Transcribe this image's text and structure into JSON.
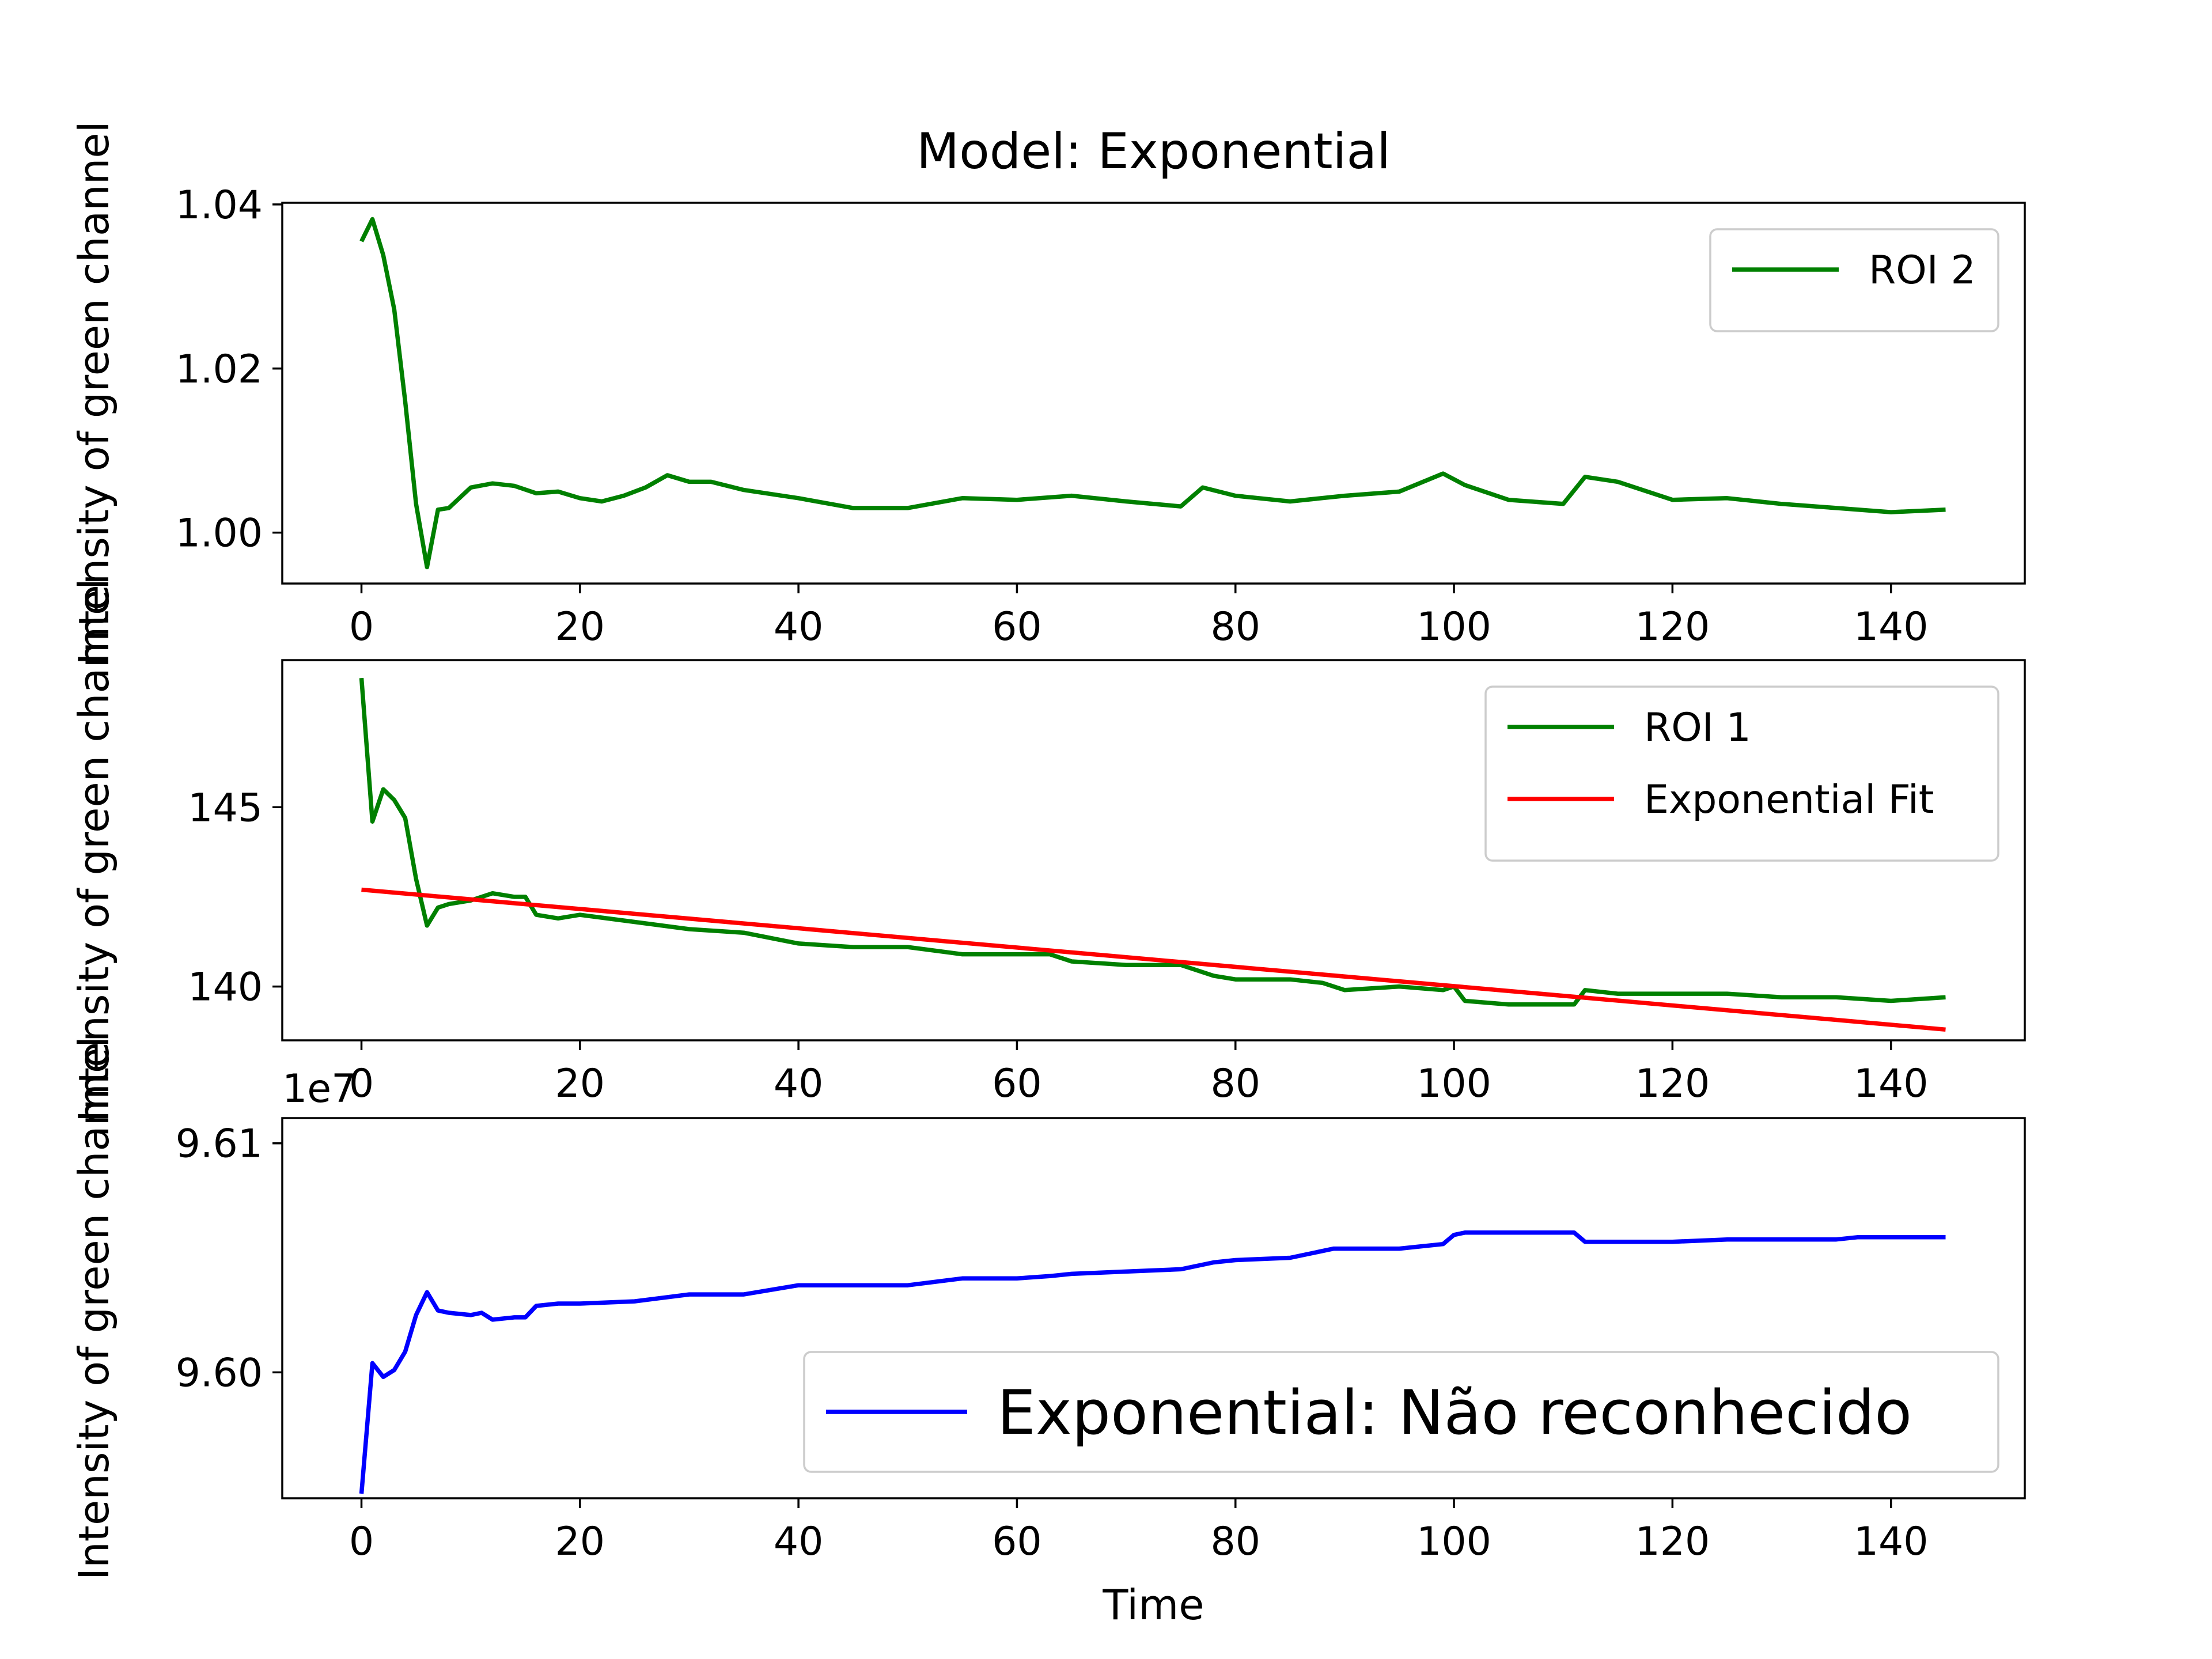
{
  "chart_data": [
    {
      "type": "line",
      "title": "Model: Exponential",
      "xlabel": "",
      "ylabel": "Intensity of green channel",
      "xlim": [
        -7.25,
        152.25
      ],
      "ylim": [
        0.9938,
        1.0402
      ],
      "xticks": [
        0,
        20,
        40,
        60,
        80,
        100,
        120,
        140
      ],
      "yticks": [
        {
          "value": 1.0,
          "label": "1.00"
        },
        {
          "value": 1.02,
          "label": "1.02"
        },
        {
          "value": 1.04,
          "label": "1.04"
        }
      ],
      "legend": "upper right",
      "grid": false,
      "series": [
        {
          "name": "ROI 2",
          "color": "#008000",
          "x": [
            0,
            1,
            2,
            3,
            4,
            5,
            6,
            7,
            8,
            10,
            12,
            14,
            16,
            18,
            20,
            22,
            24,
            26,
            28,
            30,
            32,
            35,
            40,
            45,
            50,
            55,
            60,
            65,
            70,
            75,
            77,
            80,
            85,
            90,
            95,
            99,
            101,
            105,
            110,
            112,
            115,
            120,
            125,
            130,
            135,
            140,
            145
          ],
          "y": [
            1.0355,
            1.0382,
            1.0338,
            1.0272,
            1.016,
            1.0035,
            0.9958,
            1.0028,
            1.003,
            1.0055,
            1.006,
            1.0057,
            1.0048,
            1.005,
            1.0042,
            1.0038,
            1.0045,
            1.0055,
            1.007,
            1.0062,
            1.0062,
            1.0052,
            1.0042,
            1.003,
            1.003,
            1.0042,
            1.004,
            1.0045,
            1.0038,
            1.0032,
            1.0055,
            1.0045,
            1.0038,
            1.0045,
            1.005,
            1.0072,
            1.0058,
            1.004,
            1.0035,
            1.0068,
            1.0062,
            1.004,
            1.0042,
            1.0035,
            1.003,
            1.0025,
            1.0028
          ]
        }
      ]
    },
    {
      "type": "line",
      "title": "",
      "xlabel": "",
      "ylabel": "Intensity of green channel",
      "xlim": [
        -7.25,
        152.25
      ],
      "ylim": [
        138.5,
        149.1
      ],
      "xticks": [
        0,
        20,
        40,
        60,
        80,
        100,
        120,
        140
      ],
      "yticks": [
        {
          "value": 140,
          "label": "140"
        },
        {
          "value": 145,
          "label": "145"
        }
      ],
      "legend": "upper right",
      "grid": false,
      "series": [
        {
          "name": "ROI 1",
          "color": "#008000",
          "x": [
            0,
            1,
            2,
            3,
            4,
            5,
            6,
            7,
            8,
            10,
            12,
            14,
            15,
            16,
            18,
            20,
            25,
            30,
            35,
            40,
            45,
            50,
            55,
            60,
            63,
            65,
            70,
            75,
            78,
            80,
            85,
            88,
            90,
            95,
            99,
            100,
            101,
            105,
            110,
            111,
            112,
            115,
            120,
            125,
            130,
            135,
            140,
            145
          ],
          "y": [
            148.6,
            144.6,
            145.5,
            145.2,
            144.7,
            143.0,
            141.7,
            142.2,
            142.3,
            142.4,
            142.6,
            142.5,
            142.5,
            142.0,
            141.9,
            142.0,
            141.8,
            141.6,
            141.5,
            141.2,
            141.1,
            141.1,
            140.9,
            140.9,
            140.9,
            140.7,
            140.6,
            140.6,
            140.3,
            140.2,
            140.2,
            140.1,
            139.9,
            140.0,
            139.9,
            140.0,
            139.6,
            139.5,
            139.5,
            139.5,
            139.9,
            139.8,
            139.8,
            139.8,
            139.7,
            139.7,
            139.6,
            139.7
          ]
        },
        {
          "name": "Exponential Fit",
          "color": "#ff0000",
          "x": [
            0,
            145
          ],
          "y": [
            142.7,
            138.8
          ]
        }
      ]
    },
    {
      "type": "line",
      "title": "",
      "xlabel": "Time",
      "ylabel": "Intensity of green channel",
      "offset_text": "1e7",
      "xlim": [
        -7.25,
        152.25
      ],
      "ylim": [
        9.5945,
        9.6111
      ],
      "xticks": [
        0,
        20,
        40,
        60,
        80,
        100,
        120,
        140
      ],
      "yticks": [
        {
          "value": 9.6,
          "label": "9.60"
        },
        {
          "value": 9.61,
          "label": "9.61"
        }
      ],
      "legend": "lower right",
      "grid": false,
      "series": [
        {
          "name": "Exponential: Não reconhecido",
          "color": "#0000ff",
          "x": [
            0,
            1,
            2,
            3,
            4,
            5,
            6,
            7,
            8,
            10,
            11,
            12,
            14,
            15,
            16,
            18,
            20,
            25,
            30,
            35,
            40,
            45,
            50,
            55,
            60,
            63,
            65,
            70,
            75,
            78,
            80,
            85,
            89,
            90,
            95,
            99,
            100,
            101,
            105,
            110,
            111,
            112,
            115,
            120,
            125,
            130,
            135,
            137,
            140,
            145
          ],
          "y": [
            9.5947,
            9.6004,
            9.5998,
            9.6001,
            9.6009,
            9.6025,
            9.6035,
            9.6027,
            9.6026,
            9.6025,
            9.6026,
            9.6023,
            9.6024,
            9.6024,
            9.6029,
            9.603,
            9.603,
            9.6031,
            9.6034,
            9.6034,
            9.6038,
            9.6038,
            9.6038,
            9.6041,
            9.6041,
            9.6042,
            9.6043,
            9.6044,
            9.6045,
            9.6048,
            9.6049,
            9.605,
            9.6054,
            9.6054,
            9.6054,
            9.6056,
            9.606,
            9.6061,
            9.6061,
            9.6061,
            9.6061,
            9.6057,
            9.6057,
            9.6057,
            9.6058,
            9.6058,
            9.6058,
            9.6059,
            9.6059,
            9.6059
          ]
        }
      ]
    }
  ]
}
